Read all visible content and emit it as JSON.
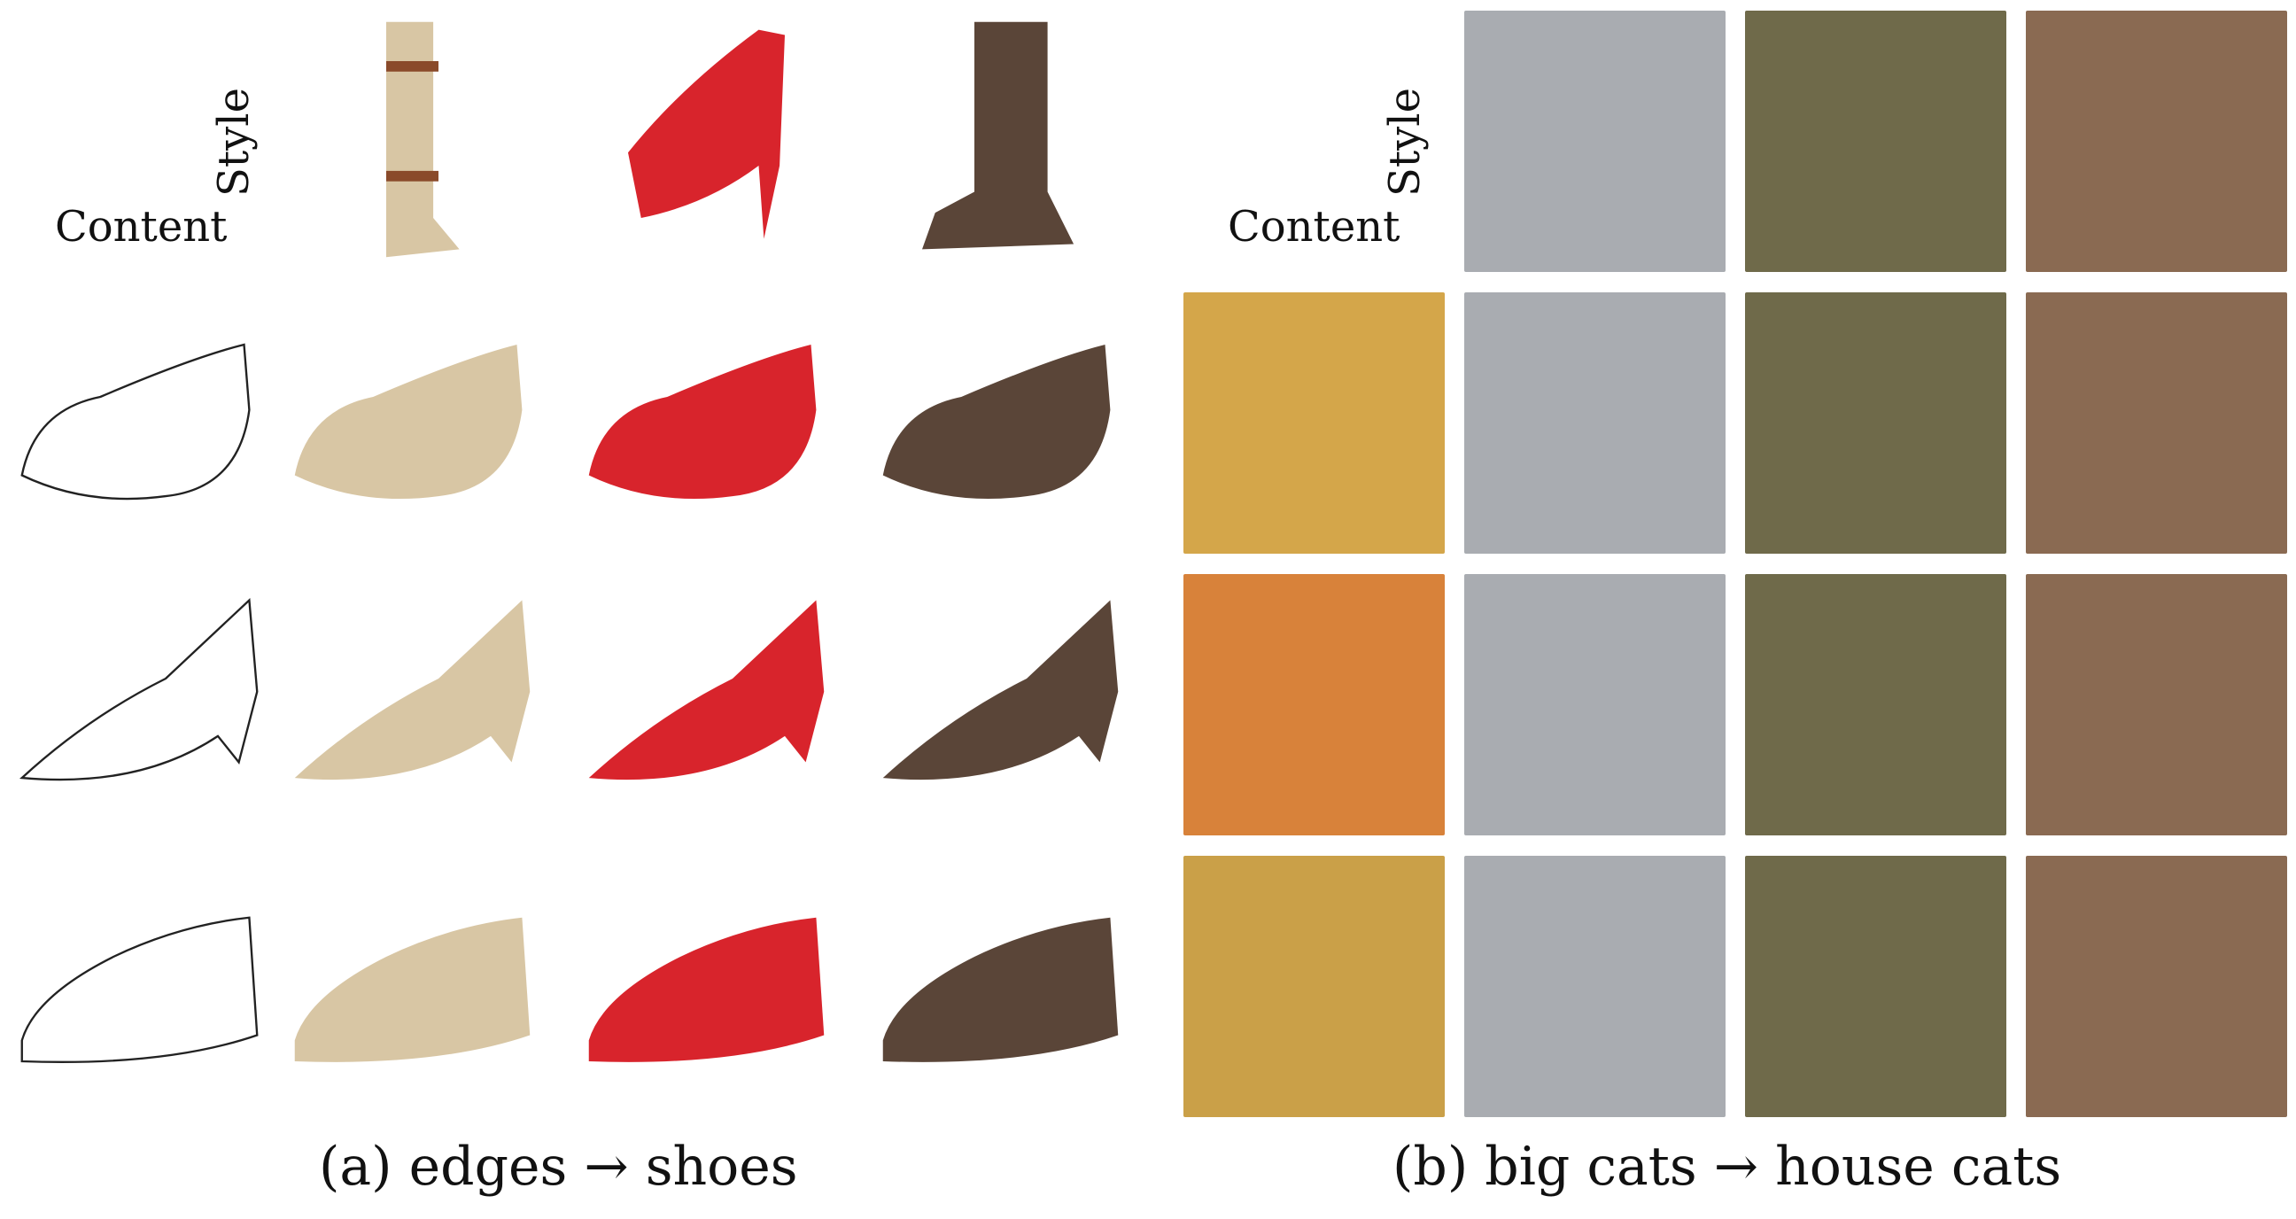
{
  "panel_a": {
    "style_label": "Style",
    "content_label": "Content",
    "caption": "(a) edges → shoes",
    "style_colors": [
      "#d8c6a4",
      "#d8242c",
      "#5a4538"
    ],
    "rows": 3
  },
  "panel_b": {
    "style_label": "Style",
    "content_label": "Content",
    "caption": "(b) big cats → house cats",
    "style_colors": [
      "#a9acb1",
      "#6f6a4a",
      "#8a6a52"
    ],
    "content_colors": [
      "#d4a64a",
      "#d8823a",
      "#caa048"
    ],
    "rows": 3
  }
}
